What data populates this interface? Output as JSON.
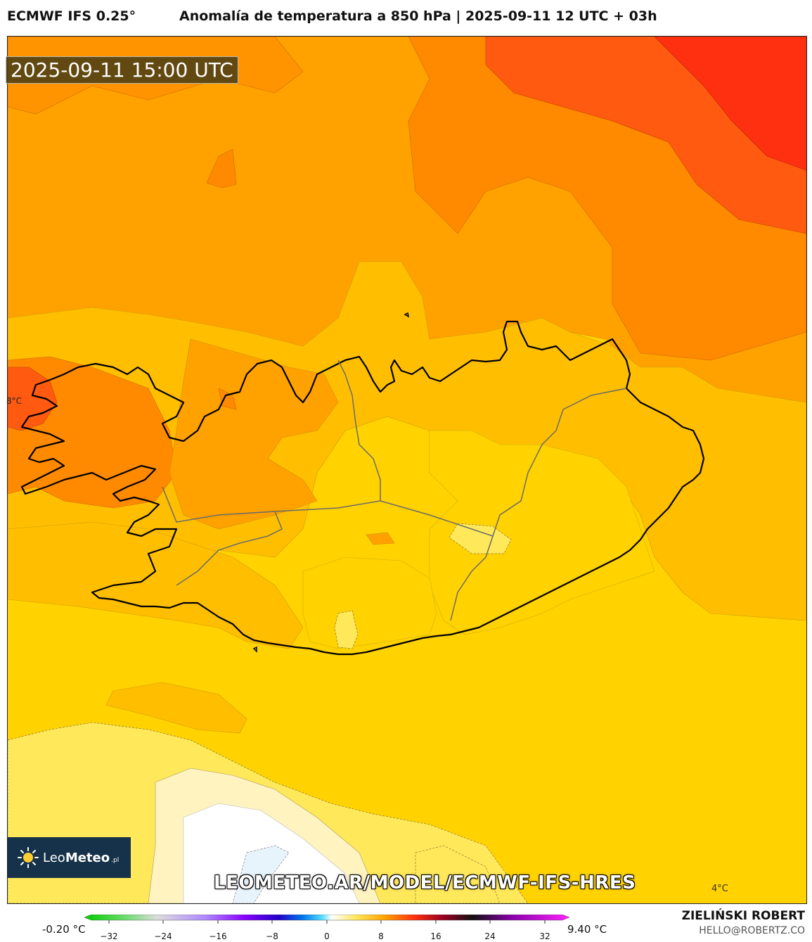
{
  "header": {
    "model": "ECMWF IFS 0.25°",
    "title": "Anomalía de temperatura a 850 hPa | 2025-09-11 12 UTC + 03h"
  },
  "map": {
    "valid_time": "2025-09-11 15:00 UTC",
    "contour_label": "4°C",
    "edge_label": "8°C"
  },
  "branding": {
    "logo_name_light": "Leo",
    "logo_name_bold": "Meteo",
    "logo_tld": ".pl",
    "site_url": "LEOMETEO.AR/MODEL/ECMWF-IFS-HRES",
    "author": "ZIELIŃSKI ROBERT",
    "email": "HELLO@ROBERTZ.CO"
  },
  "colorbar": {
    "min_value": "-0.20 °C",
    "max_value": "9.40 °C",
    "ticks": [
      "−32",
      "−24",
      "−16",
      "−8",
      "0",
      "8",
      "16",
      "24",
      "32"
    ]
  },
  "colors": {
    "band_0_2": "#ffffff",
    "band_2_4": "#fff3c0",
    "band_4_6": "#ffe85a",
    "band_6_8": "#ffd200",
    "band_8_10": "#ffbf00",
    "band_10_12": "#ffa200",
    "band_12_14": "#ff8a00",
    "band_14_16": "#ff5a10",
    "band_16_18": "#ff3010"
  }
}
